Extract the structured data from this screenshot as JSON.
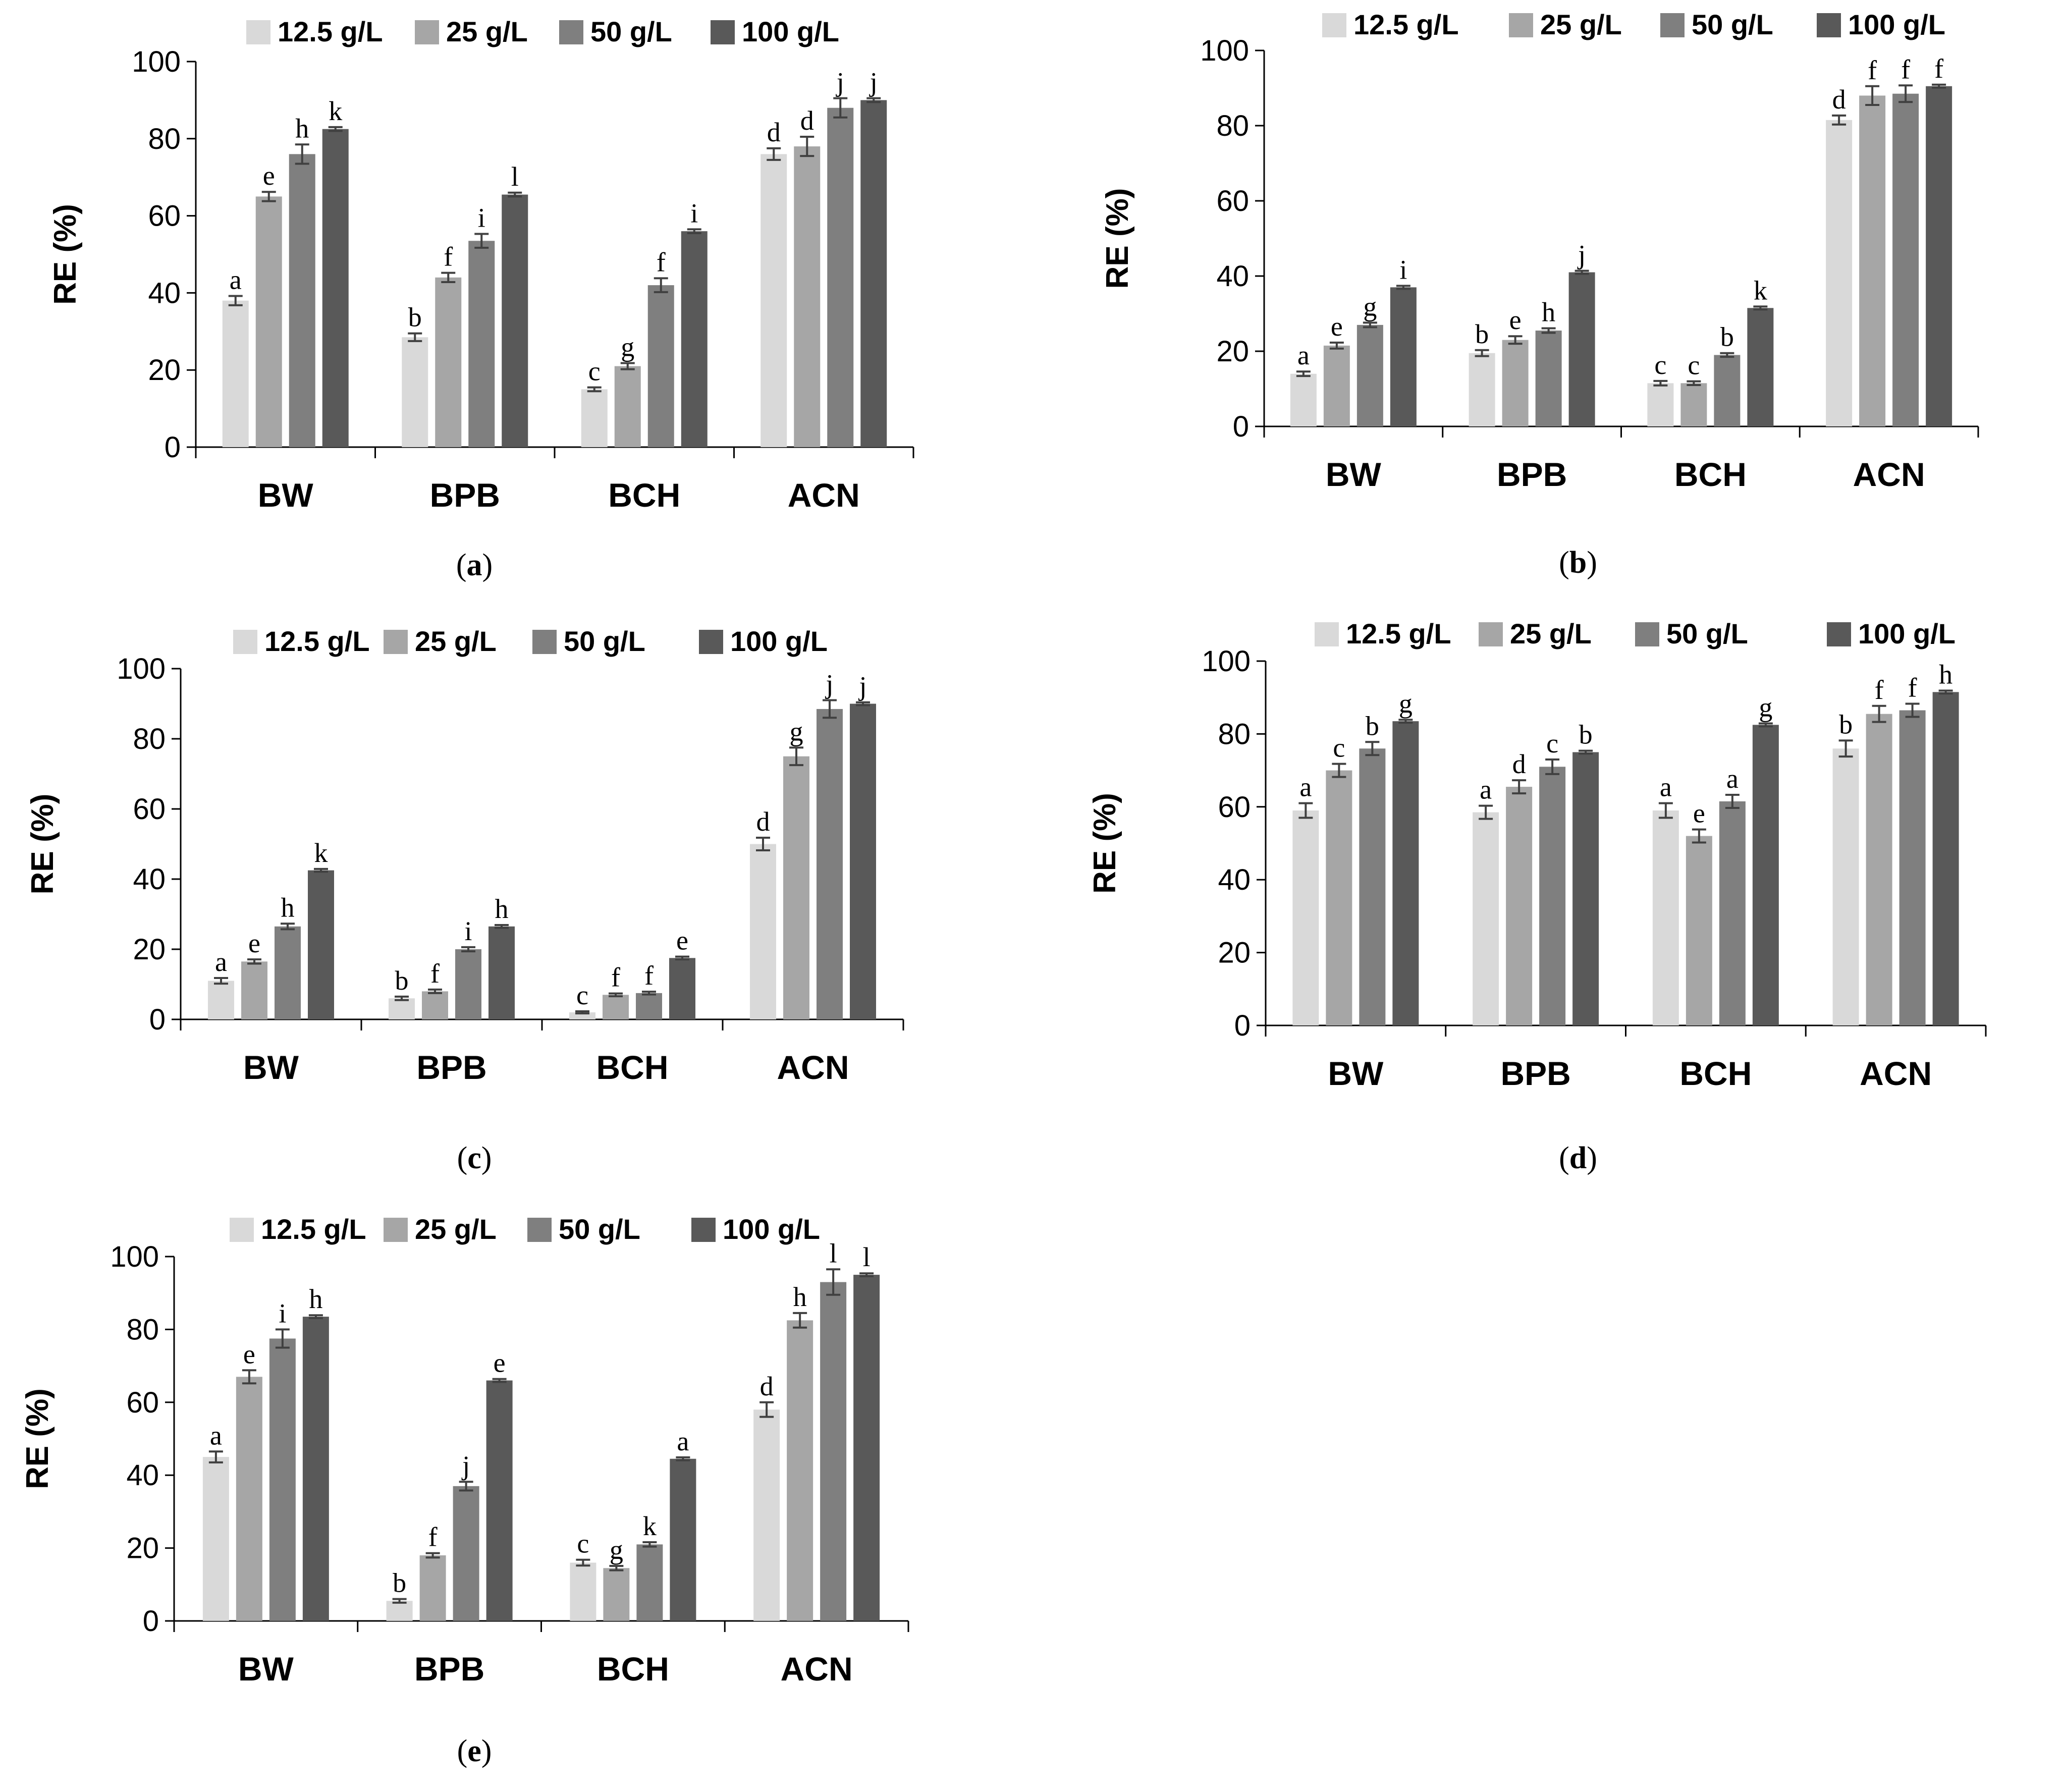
{
  "figure": {
    "series_colors": [
      "#d9d9d9",
      "#a6a6a6",
      "#7f7f7f",
      "#595959"
    ],
    "axis_color": "#000000",
    "errorbar_color": "#404040"
  },
  "chart_data": [
    {
      "type": "bar",
      "panel": "(a)",
      "caption_open": "(",
      "caption_letter": "a",
      "caption_close": ")",
      "ylabel": "RE (%)",
      "xlabel": "",
      "ylim": [
        0,
        100
      ],
      "yticks": [
        "0",
        "20",
        "40",
        "60",
        "80",
        "100"
      ],
      "categories": [
        "BW",
        "BPB",
        "BCH",
        "ACN"
      ],
      "legend_position": "top",
      "series": [
        {
          "name": "12.5 g/L",
          "values": [
            38,
            28.5,
            15,
            76
          ],
          "errors": [
            1.2,
            1,
            0.5,
            1.5
          ],
          "letters": [
            "a",
            "b",
            "c",
            "d"
          ]
        },
        {
          "name": "25 g/L",
          "values": [
            65,
            44,
            21,
            78
          ],
          "errors": [
            1.2,
            1.2,
            0.8,
            2.5
          ],
          "letters": [
            "e",
            "f",
            "g",
            "d"
          ]
        },
        {
          "name": "50 g/L",
          "values": [
            76,
            53.5,
            42,
            88
          ],
          "errors": [
            2.5,
            1.8,
            1.8,
            2.5
          ],
          "letters": [
            "h",
            "i",
            "f",
            "j"
          ]
        },
        {
          "name": "100 g/L",
          "values": [
            82.5,
            65.5,
            56,
            90
          ],
          "errors": [
            0.5,
            0.5,
            0.5,
            0.5
          ],
          "letters": [
            "k",
            "l",
            "i",
            "j"
          ]
        }
      ]
    },
    {
      "type": "bar",
      "panel": "(b)",
      "caption_open": "(",
      "caption_letter": "b",
      "caption_close": ")",
      "ylabel": "RE (%)",
      "xlabel": "",
      "ylim": [
        0,
        100
      ],
      "yticks": [
        "0",
        "20",
        "40",
        "60",
        "80",
        "100"
      ],
      "categories": [
        "BW",
        "BPB",
        "BCH",
        "ACN"
      ],
      "legend_position": "top",
      "series": [
        {
          "name": "12.5 g/L",
          "values": [
            14,
            19.5,
            11.5,
            81.5
          ],
          "errors": [
            0.6,
            0.8,
            0.6,
            1.2
          ],
          "letters": [
            "a",
            "b",
            "c",
            "d"
          ]
        },
        {
          "name": "25 g/L",
          "values": [
            21.5,
            23,
            11.5,
            88
          ],
          "errors": [
            0.8,
            1,
            0.5,
            2.5
          ],
          "letters": [
            "e",
            "e",
            "c",
            "f"
          ]
        },
        {
          "name": "50 g/L",
          "values": [
            27,
            25.5,
            19,
            88.5
          ],
          "errors": [
            0.6,
            0.6,
            0.5,
            2.2
          ],
          "letters": [
            "g",
            "h",
            "b",
            "f"
          ]
        },
        {
          "name": "100 g/L",
          "values": [
            37,
            41,
            31.5,
            90.5
          ],
          "errors": [
            0.4,
            0.4,
            0.4,
            0.4
          ],
          "letters": [
            "i",
            "j",
            "k",
            "f"
          ]
        }
      ]
    },
    {
      "type": "bar",
      "panel": "(c)",
      "caption_open": "(",
      "caption_letter": "c",
      "caption_close": ")",
      "ylabel": "RE (%)",
      "xlabel": "",
      "ylim": [
        0,
        100
      ],
      "yticks": [
        "0",
        "20",
        "40",
        "60",
        "80",
        "100"
      ],
      "categories": [
        "BW",
        "BPB",
        "BCH",
        "ACN"
      ],
      "legend_position": "top",
      "series": [
        {
          "name": "12.5 g/L",
          "values": [
            11,
            6,
            2,
            50
          ],
          "errors": [
            0.8,
            0.5,
            0.3,
            1.8
          ],
          "letters": [
            "a",
            "b",
            "c",
            "d"
          ]
        },
        {
          "name": "25 g/L",
          "values": [
            16.5,
            8,
            7,
            75
          ],
          "errors": [
            0.6,
            0.5,
            0.4,
            2.5
          ],
          "letters": [
            "e",
            "f",
            "f",
            "g"
          ]
        },
        {
          "name": "50 g/L",
          "values": [
            26.5,
            20,
            7.5,
            88.5
          ],
          "errors": [
            0.8,
            0.6,
            0.4,
            2.5
          ],
          "letters": [
            "h",
            "i",
            "f",
            "j"
          ]
        },
        {
          "name": "100 g/L",
          "values": [
            42.5,
            26.5,
            17.5,
            90
          ],
          "errors": [
            0.4,
            0.4,
            0.4,
            0.4
          ],
          "letters": [
            "k",
            "h",
            "e",
            "j"
          ]
        }
      ]
    },
    {
      "type": "bar",
      "panel": "(d)",
      "caption_open": "(",
      "caption_letter": "d",
      "caption_close": ")",
      "ylabel": "RE (%)",
      "xlabel": "",
      "ylim": [
        0,
        100
      ],
      "yticks": [
        "0",
        "20",
        "40",
        "60",
        "80",
        "100"
      ],
      "categories": [
        "BW",
        "BPB",
        "BCH",
        "ACN"
      ],
      "legend_position": "top",
      "series": [
        {
          "name": "12.5 g/L",
          "values": [
            59,
            58.5,
            59,
            76
          ],
          "errors": [
            2,
            1.8,
            2,
            2.2
          ],
          "letters": [
            "a",
            "a",
            "a",
            "b"
          ]
        },
        {
          "name": "25 g/L",
          "values": [
            70,
            65.5,
            52,
            85.5
          ],
          "errors": [
            1.8,
            1.8,
            1.8,
            2.2
          ],
          "letters": [
            "c",
            "d",
            "e",
            "f"
          ]
        },
        {
          "name": "50 g/L",
          "values": [
            76,
            71,
            61.5,
            86.5
          ],
          "errors": [
            1.8,
            2,
            1.8,
            1.8
          ],
          "letters": [
            "b",
            "c",
            "a",
            "f"
          ]
        },
        {
          "name": "100 g/L",
          "values": [
            83.5,
            75,
            82.5,
            91.5
          ],
          "errors": [
            0.4,
            0.4,
            0.4,
            0.4
          ],
          "letters": [
            "g",
            "b",
            "g",
            "h"
          ]
        }
      ]
    },
    {
      "type": "bar",
      "panel": "(e)",
      "caption_open": "(",
      "caption_letter": "e",
      "caption_close": ")",
      "ylabel": "RE (%)",
      "xlabel": "",
      "ylim": [
        0,
        100
      ],
      "yticks": [
        "0",
        "20",
        "40",
        "60",
        "80",
        "100"
      ],
      "categories": [
        "BW",
        "BPB",
        "BCH",
        "ACN"
      ],
      "legend_position": "top",
      "series": [
        {
          "name": "12.5 g/L",
          "values": [
            45,
            5.5,
            16,
            58
          ],
          "errors": [
            1.5,
            0.5,
            0.8,
            2
          ],
          "letters": [
            "a",
            "b",
            "c",
            "d"
          ]
        },
        {
          "name": "25 g/L",
          "values": [
            67,
            18,
            14.5,
            82.5
          ],
          "errors": [
            1.8,
            0.6,
            0.6,
            2
          ],
          "letters": [
            "e",
            "f",
            "g",
            "h"
          ]
        },
        {
          "name": "50 g/L",
          "values": [
            77.5,
            37,
            21,
            93
          ],
          "errors": [
            2.5,
            1.2,
            0.6,
            3.5
          ],
          "letters": [
            "i",
            "j",
            "k",
            "l"
          ]
        },
        {
          "name": "100 g/L",
          "values": [
            83.5,
            66,
            44.5,
            95
          ],
          "errors": [
            0.4,
            0.4,
            0.4,
            0.4
          ],
          "letters": [
            "h",
            "e",
            "a",
            "l"
          ]
        }
      ]
    }
  ]
}
